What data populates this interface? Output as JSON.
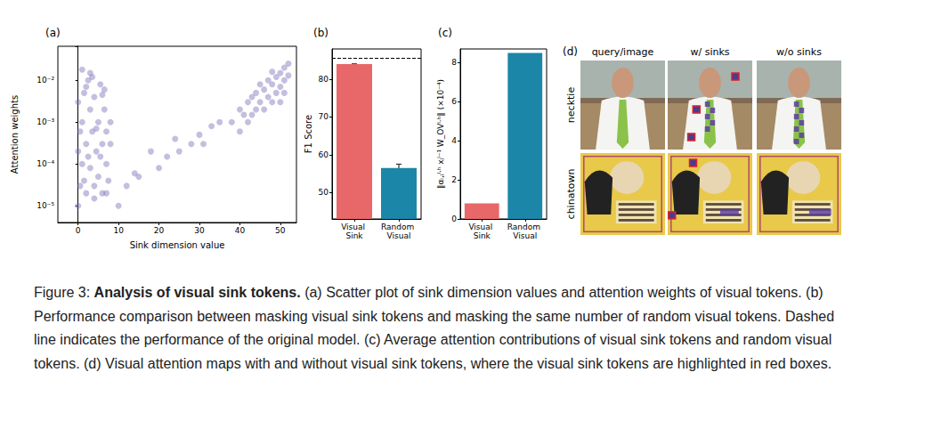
{
  "chart_data": [
    {
      "type": "scatter",
      "title": "(a)",
      "x_label": "Sink dimension value",
      "y_label": "Attention weights",
      "log": "y",
      "grid": false,
      "color": "#7b72b8",
      "x": [
        0,
        0.5,
        1,
        1,
        1.5,
        2,
        2,
        2.5,
        3,
        3,
        3.5,
        4,
        4,
        4.5,
        5,
        5,
        5.5,
        6,
        6,
        6.5,
        7,
        7,
        7.5,
        8,
        8,
        0.5,
        1.5,
        2.5,
        3.5,
        4.5,
        5.5,
        6.5,
        1,
        2,
        0,
        0,
        3,
        4,
        6,
        7,
        10,
        12,
        14,
        15,
        18,
        20,
        22,
        24,
        25,
        28,
        30,
        31,
        33,
        35,
        38,
        40,
        40,
        41,
        42,
        42,
        43,
        43,
        44,
        44,
        45,
        45,
        46,
        46,
        47,
        47,
        48,
        48,
        48,
        49,
        49,
        50,
        50,
        50,
        51,
        51,
        51,
        52,
        52
      ],
      "values": [
        1e-05,
        3e-05,
        0.0001,
        0.001,
        0.005,
        2e-05,
        0.0003,
        0.01,
        8e-05,
        0.002,
        0.0006,
        1.5e-05,
        0.004,
        0.0002,
        0.001,
        5e-05,
        0.008,
        0.0003,
        2e-05,
        0.002,
        0.0001,
        0.0006,
        4e-05,
        0.0003,
        0.001,
        0.0006,
        4e-05,
        0.00015,
        0.012,
        0.0007,
        0.00015,
        0.006,
        0.018,
        0.007,
        0.003,
        0.0002,
        0.015,
        3e-05,
        0.0045,
        2e-05,
        1e-05,
        3e-05,
        6e-05,
        5e-05,
        0.0002,
        8e-05,
        0.00015,
        0.0004,
        0.0002,
        0.0003,
        0.0005,
        0.0003,
        0.0008,
        0.001,
        0.001,
        0.0006,
        0.002,
        0.0015,
        0.001,
        0.003,
        0.0015,
        0.004,
        0.002,
        0.005,
        0.003,
        0.008,
        0.002,
        0.006,
        0.004,
        0.01,
        0.003,
        0.008,
        0.016,
        0.005,
        0.012,
        0.007,
        0.015,
        0.003,
        0.01,
        0.02,
        0.005,
        0.013,
        0.025
      ],
      "xlim": [
        -5,
        54
      ],
      "xticks": [
        0,
        10,
        20,
        30,
        40,
        50
      ],
      "ylim": [
        4e-06,
        0.065
      ],
      "yticks": [
        {
          "value": 1e-05,
          "label": "10⁻⁵"
        },
        {
          "value": 0.0001,
          "label": "10⁻⁴"
        },
        {
          "value": 0.001,
          "label": "10⁻³"
        },
        {
          "value": 0.01,
          "label": "10⁻²"
        }
      ]
    },
    {
      "type": "bar",
      "title": "(b)",
      "y_label": "F1 Score",
      "categories": [
        "Visual Sink",
        "Random Visual"
      ],
      "values": [
        84,
        56.5
      ],
      "errors": [
        0,
        1
      ],
      "colors": [
        "#e8686a",
        "#1b86a8"
      ],
      "reference_line": 85.7,
      "ylim": [
        43,
        88
      ],
      "yticks": [
        50,
        60,
        70,
        80
      ],
      "grid": false
    },
    {
      "type": "bar",
      "title": "(c)",
      "y_label": "‖αᵢ,ⱼˡ·ʰ xⱼˡ⁻¹ W_OVˡ·ʰ‖ (×10⁻⁴)",
      "categories": [
        "Visual Sink",
        "Random Visual"
      ],
      "values": [
        0.8,
        8.5
      ],
      "colors": [
        "#e8686a",
        "#1b86a8"
      ],
      "ylim": [
        0,
        8.7
      ],
      "yticks": [
        0,
        2,
        4,
        6,
        8
      ],
      "grid": false
    }
  ],
  "panel_d": {
    "title": "(d)",
    "columns": [
      "query/image",
      "w/ sinks",
      "w/o sinks"
    ],
    "rows": [
      "necktie",
      "chinatown"
    ]
  },
  "caption": {
    "label": "Figure 3:",
    "title": "Analysis of visual sink tokens.",
    "text": "(a) Scatter plot of sink dimension values and attention weights of visual tokens. (b) Performance comparison between masking visual sink tokens and masking the same number of random visual tokens. Dashed line indicates the performance of the original model. (c) Average attention contributions of visual sink tokens and random visual tokens. (d) Visual attention maps with and without visual sink tokens, where the visual sink tokens are highlighted in red boxes."
  }
}
